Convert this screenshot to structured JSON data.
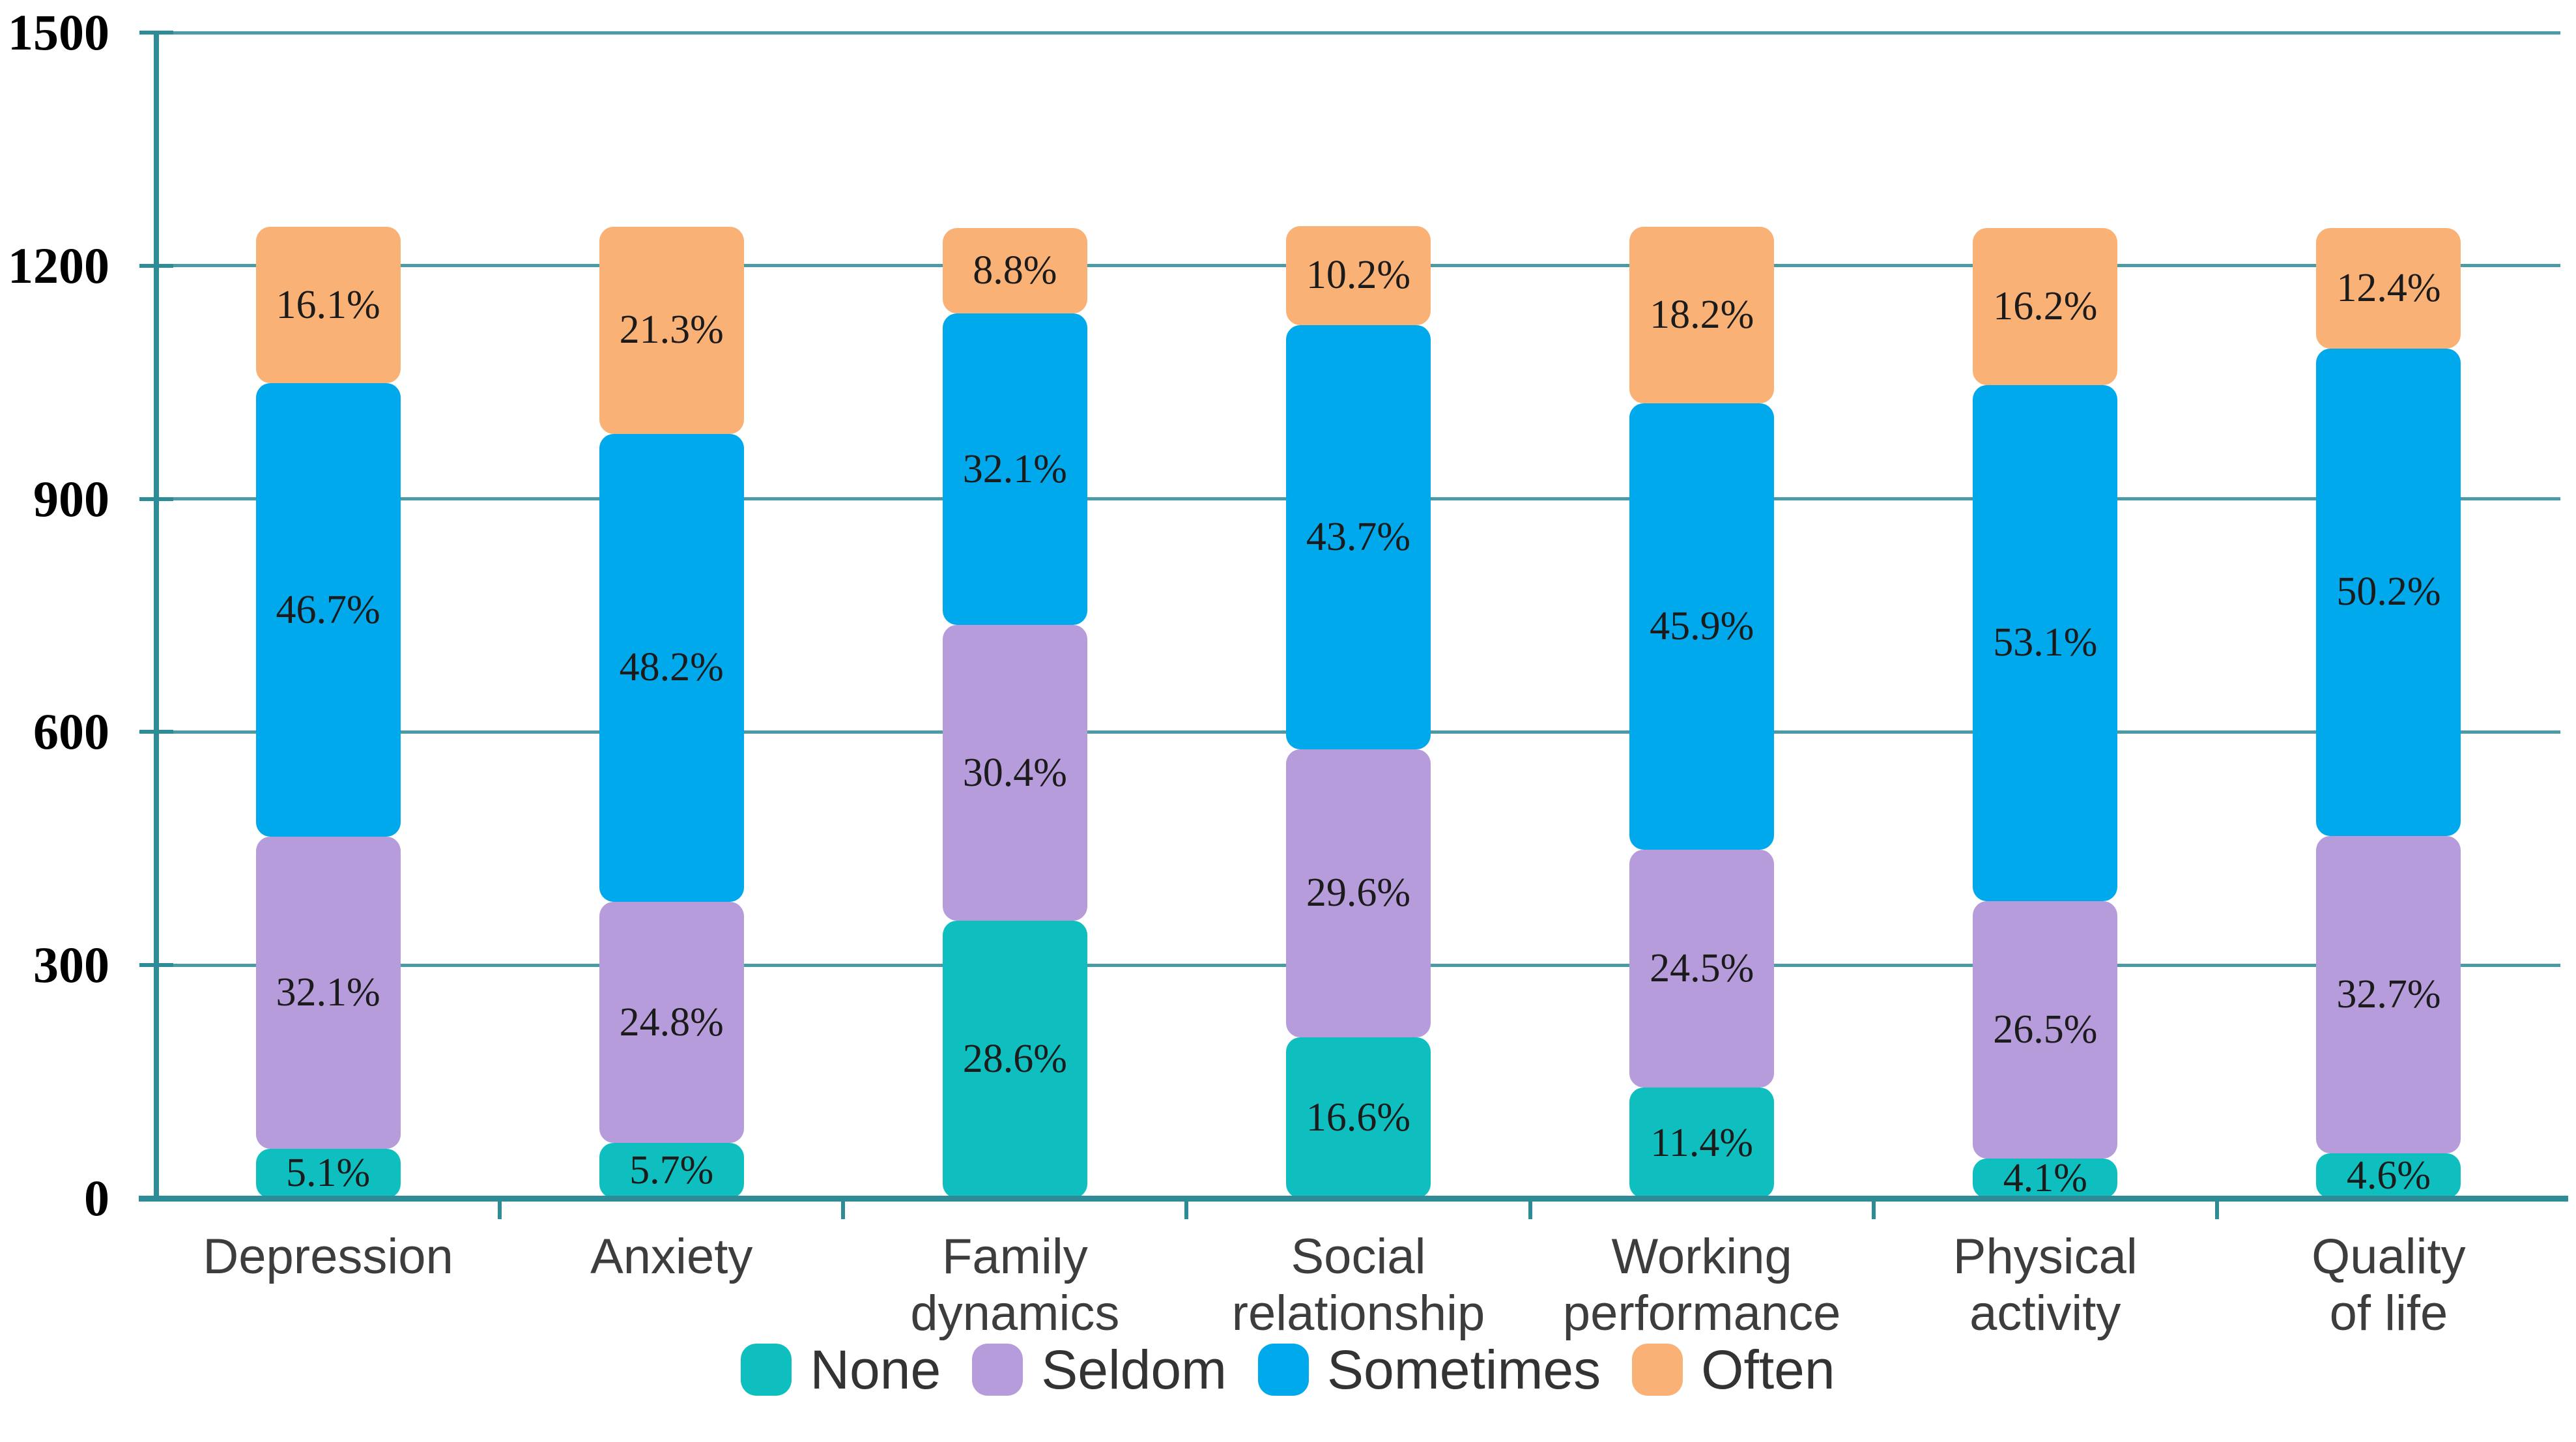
{
  "chart_data": {
    "type": "bar",
    "stacked": true,
    "title": "",
    "xlabel": "",
    "ylabel": "",
    "categories": [
      "Depression",
      "Anxiety",
      "Family\ndynamics",
      "Social\nrelationship",
      "Working\nperformance",
      "Physical\nactivity",
      "Quality\nof life"
    ],
    "series": [
      {
        "name": "None",
        "color": "#0fbfc0",
        "values": [
          5.1,
          5.7,
          28.6,
          16.6,
          11.4,
          4.1,
          4.6
        ]
      },
      {
        "name": "Seldom",
        "color": "#b69cda",
        "values": [
          32.1,
          24.8,
          30.4,
          29.6,
          24.5,
          26.5,
          32.7
        ]
      },
      {
        "name": "Sometimes",
        "color": "#00a9ec",
        "values": [
          46.7,
          48.2,
          32.1,
          43.7,
          45.9,
          53.1,
          50.2
        ]
      },
      {
        "name": "Often",
        "color": "#f9b176",
        "values": [
          16.1,
          21.3,
          8.8,
          10.2,
          18.2,
          16.2,
          12.4
        ]
      }
    ],
    "segment_labels": [
      [
        "5.1%",
        "5.7%",
        "28.6%",
        "16.6%",
        "11.4%",
        "4.1%",
        "4.6%"
      ],
      [
        "32.1%",
        "24.8%",
        "30.4%",
        "29.6%",
        "24.5%",
        "26.5%",
        "32.7%"
      ],
      [
        "46.7%",
        "48.2%",
        "32.1%",
        "43.7%",
        "45.9%",
        "53.1%",
        "50.2%"
      ],
      [
        "16.1%",
        "21.3%",
        "8.8%",
        "10.2%",
        "18.2%",
        "16.2%",
        "12.4%"
      ]
    ],
    "value_suffix": "%",
    "y_ticks": [
      "0",
      "300",
      "600",
      "900",
      "1200",
      "1500"
    ],
    "ylim": [
      0,
      1500
    ],
    "bar_total_value": 1250,
    "grid": true,
    "legend": [
      "None",
      "Seldom",
      "Sometimes",
      "Often"
    ],
    "legend_position": "bottom",
    "colors": {
      "gridline": "#4a9ba5",
      "axis": "#2e8c96",
      "segment_label": "#1b1b1b",
      "category_label": "#3d3d3d",
      "legend_label": "#333333",
      "y_label": "#000000",
      "background": "#ffffff"
    }
  }
}
